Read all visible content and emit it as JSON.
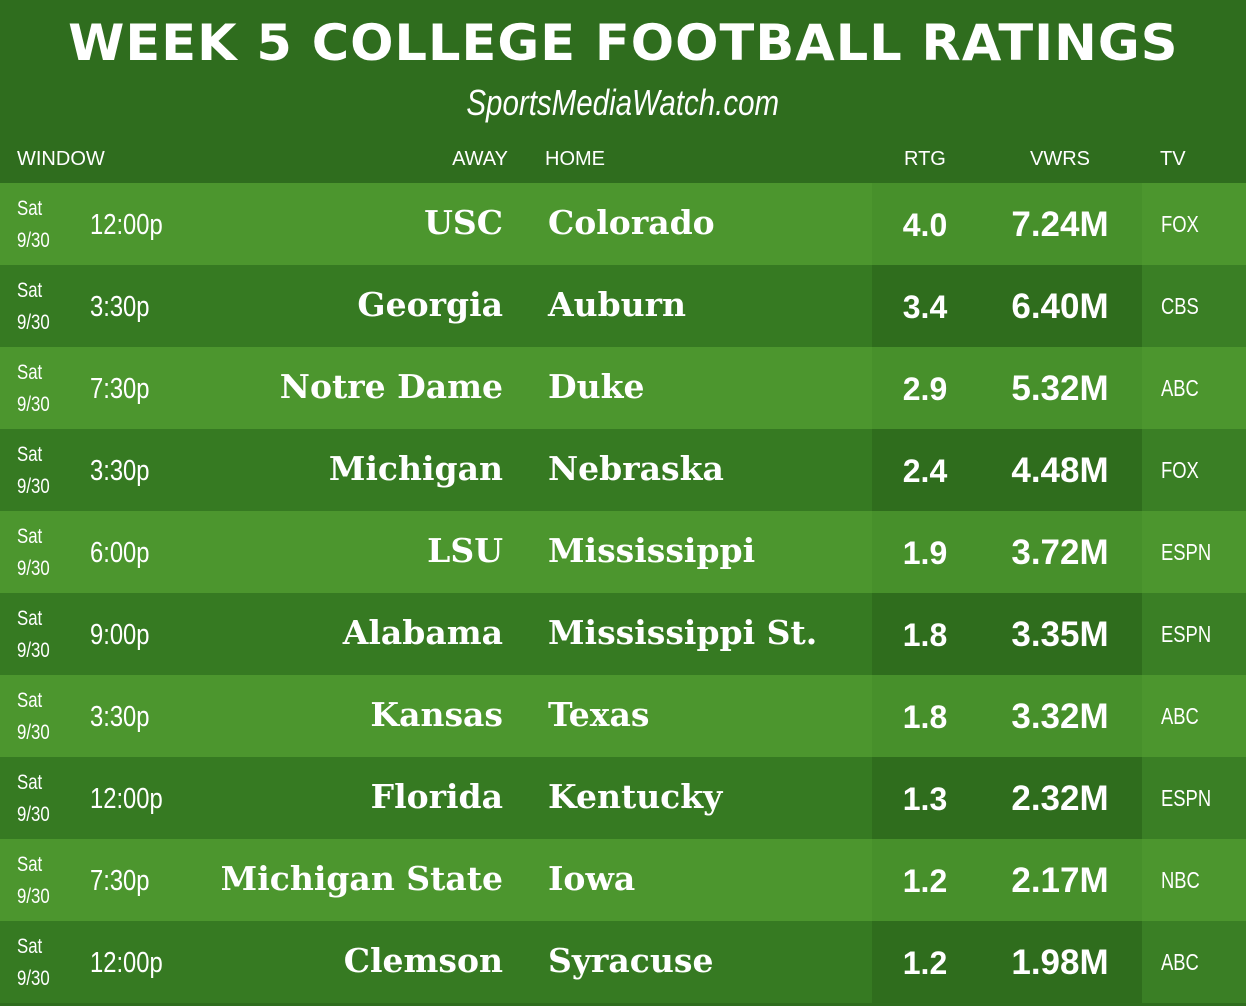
{
  "title": "WEEK 5 COLLEGE FOOTBALL RATINGS",
  "subtitle": "SportsMediaWatch.com",
  "chart_data": {
    "type": "table",
    "title": "WEEK 5 COLLEGE FOOTBALL RATINGS",
    "columns": [
      "WINDOW",
      "AWAY",
      "HOME",
      "RTG",
      "VWRS",
      "TV"
    ],
    "rows": [
      {
        "day": "Sat",
        "date": "9/30",
        "time": "12:00p",
        "away": "USC",
        "home": "Colorado",
        "rtg": "4.0",
        "vwrs": "7.24M",
        "tv": "FOX"
      },
      {
        "day": "Sat",
        "date": "9/30",
        "time": "3:30p",
        "away": "Georgia",
        "home": "Auburn",
        "rtg": "3.4",
        "vwrs": "6.40M",
        "tv": "CBS"
      },
      {
        "day": "Sat",
        "date": "9/30",
        "time": "7:30p",
        "away": "Notre Dame",
        "home": "Duke",
        "rtg": "2.9",
        "vwrs": "5.32M",
        "tv": "ABC"
      },
      {
        "day": "Sat",
        "date": "9/30",
        "time": "3:30p",
        "away": "Michigan",
        "home": "Nebraska",
        "rtg": "2.4",
        "vwrs": "4.48M",
        "tv": "FOX"
      },
      {
        "day": "Sat",
        "date": "9/30",
        "time": "6:00p",
        "away": "LSU",
        "home": "Mississippi",
        "rtg": "1.9",
        "vwrs": "3.72M",
        "tv": "ESPN"
      },
      {
        "day": "Sat",
        "date": "9/30",
        "time": "9:00p",
        "away": "Alabama",
        "home": "Mississippi St.",
        "rtg": "1.8",
        "vwrs": "3.35M",
        "tv": "ESPN"
      },
      {
        "day": "Sat",
        "date": "9/30",
        "time": "3:30p",
        "away": "Kansas",
        "home": "Texas",
        "rtg": "1.8",
        "vwrs": "3.32M",
        "tv": "ABC"
      },
      {
        "day": "Sat",
        "date": "9/30",
        "time": "12:00p",
        "away": "Florida",
        "home": "Kentucky",
        "rtg": "1.3",
        "vwrs": "2.32M",
        "tv": "ESPN"
      },
      {
        "day": "Sat",
        "date": "9/30",
        "time": "7:30p",
        "away": "Michigan State",
        "home": "Iowa",
        "rtg": "1.2",
        "vwrs": "2.17M",
        "tv": "NBC"
      },
      {
        "day": "Sat",
        "date": "9/30",
        "time": "12:00p",
        "away": "Clemson",
        "home": "Syracuse",
        "rtg": "1.2",
        "vwrs": "1.98M",
        "tv": "ABC"
      }
    ]
  }
}
